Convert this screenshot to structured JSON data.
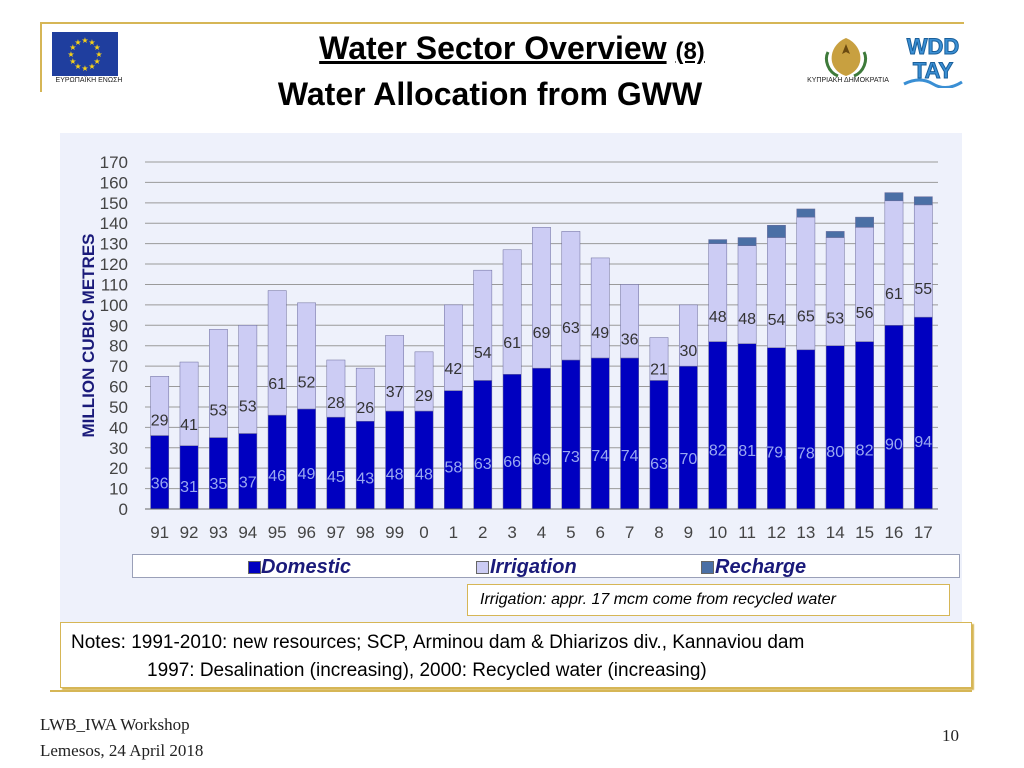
{
  "header": {
    "title_main": "Water Sector Overview",
    "title_number": "(8)",
    "subtitle": "Water Allocation from GWW",
    "eu_logo_text": "ΕΥΡΩΠΑΪΚΗ ΕΝΩΣΗ",
    "cyprus_logo_text": "ΚΥΠΡΙΑΚΗ ΔΗΜΟΚΡΑΤΙΑ",
    "wdd_logo_text_top": "WDD",
    "wdd_logo_text_bottom": "TAY"
  },
  "chart_data": {
    "type": "bar",
    "stacked": true,
    "title": "",
    "xlabel": "",
    "ylabel": "MILLION CUBIC METRES",
    "ylim": [
      0,
      170
    ],
    "yticks": [
      0,
      10,
      20,
      30,
      40,
      50,
      60,
      70,
      80,
      90,
      100,
      110,
      120,
      130,
      140,
      150,
      160,
      170
    ],
    "categories": [
      "91",
      "92",
      "93",
      "94",
      "95",
      "96",
      "97",
      "98",
      "99",
      "0",
      "1",
      "2",
      "3",
      "4",
      "5",
      "6",
      "7",
      "8",
      "9",
      "10",
      "11",
      "12",
      "13",
      "14",
      "15",
      "16",
      "17"
    ],
    "series": [
      {
        "name": "Domestic",
        "color": "#0000c0",
        "values": [
          36,
          31,
          35,
          37,
          46,
          49,
          45,
          43,
          48,
          48,
          58,
          63,
          66,
          69,
          73,
          74,
          74,
          63,
          70,
          82,
          81,
          79,
          78,
          80,
          82,
          90,
          94
        ],
        "labels": [
          "36",
          "31",
          "35",
          "37",
          "46",
          "49",
          "45",
          "43",
          "48",
          "48",
          "58",
          "63",
          "66",
          "69",
          "73",
          "74",
          "74",
          "63",
          "70",
          "82",
          "81",
          "79,",
          "78",
          "80",
          "82",
          "90",
          "94"
        ]
      },
      {
        "name": "Irrigation",
        "color": "#ccccf4",
        "values": [
          29,
          41,
          53,
          53,
          61,
          52,
          28,
          26,
          37,
          29,
          42,
          54,
          61,
          69,
          63,
          49,
          36,
          21,
          30,
          48,
          48,
          54,
          65,
          53,
          56,
          61,
          55
        ],
        "labels": [
          "29",
          "41",
          "53",
          "53",
          "61",
          "52",
          "28",
          "26",
          "37",
          "29",
          "42",
          "54",
          "61",
          "69",
          "63",
          "49",
          "36",
          "21",
          "30",
          "48",
          "48",
          "54",
          "65",
          "53",
          "56",
          "61",
          "55"
        ]
      },
      {
        "name": "Recharge",
        "color": "#4a6fa5",
        "values": [
          0,
          0,
          0,
          0,
          0,
          0,
          0,
          0,
          0,
          0,
          0,
          0,
          0,
          0,
          0,
          0,
          0,
          0,
          0,
          2,
          4,
          6,
          4,
          3,
          5,
          4,
          4
        ]
      }
    ],
    "legend": [
      "Domestic",
      "Irrigation",
      "Recharge"
    ],
    "legend_position": "bottom",
    "grid": true
  },
  "annotation": {
    "irrigation_note": "Irrigation: appr. 17 mcm come from recycled water"
  },
  "notes": {
    "line1": "Notes: 1991-2010: new resources; SCP, Arminou dam & Dhiarizos div., Kannaviou dam",
    "line2": "1997:  Desalination (increasing), 2000: Recycled water (increasing)"
  },
  "footer": {
    "event": "LWB_IWA Workshop",
    "place_date": "Lemesos, 24 April 2018",
    "page_number": "10"
  },
  "colors": {
    "accent_gold": "#d6b656",
    "domestic": "#0000c0",
    "irrigation": "#ccccf4",
    "recharge": "#4a6fa5",
    "text_navy": "#1a1a7a"
  }
}
